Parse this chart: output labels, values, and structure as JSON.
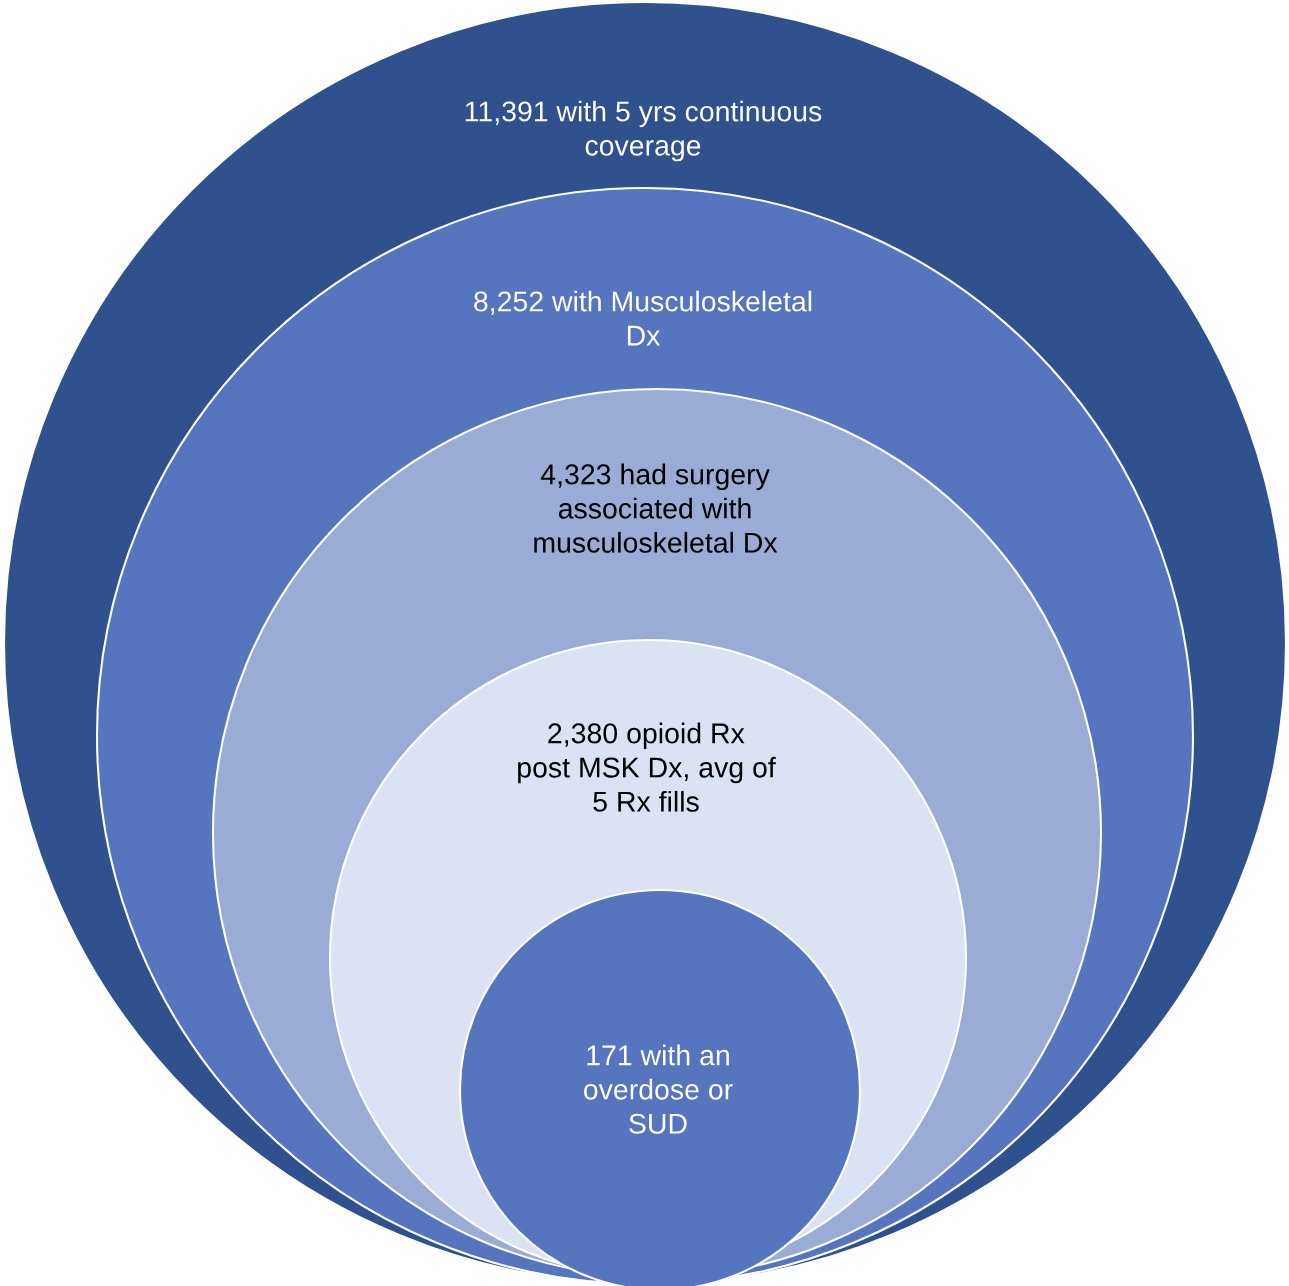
{
  "chart_data": {
    "type": "other",
    "categories": [
      "with 5 yrs continuous\ncoverage",
      "with Musculoskeletal\nDx",
      "had surgery\nassociated with\nmusculoskeletal Dx",
      "opioid Rx\npost MSK Dx, avg of\n5 Rx fills",
      "with an\noverdose or\nSUD"
    ],
    "values": [
      11391,
      8252,
      4323,
      2380,
      171
    ],
    "value_labels": [
      "11,391",
      "8,252",
      "4,323",
      "2,380",
      "171"
    ],
    "colors": [
      "#2f528f",
      "#5575bf",
      "#9aabd6",
      "#dae2f3",
      "#5575bf"
    ]
  }
}
